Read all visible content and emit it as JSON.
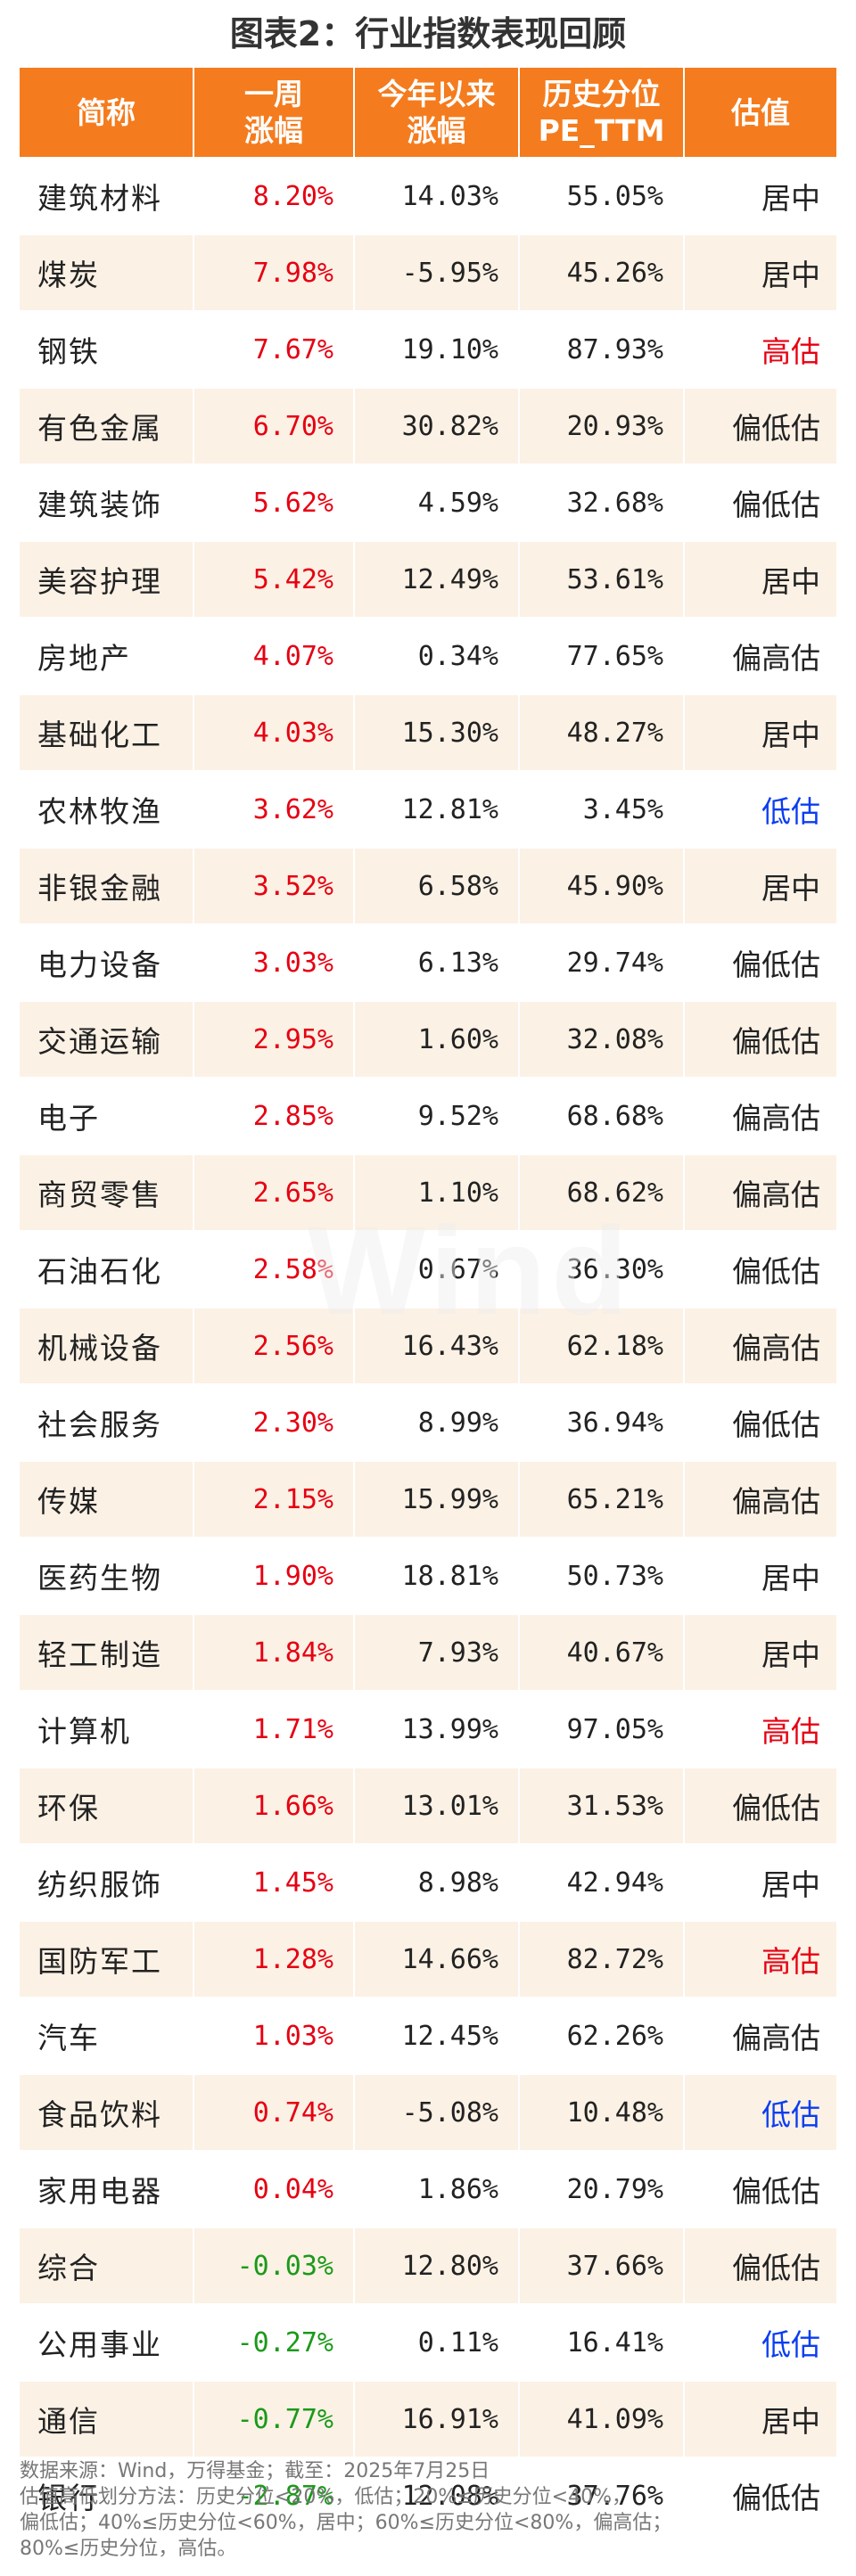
{
  "title": "图表2：行业指数表现回顾",
  "headers": [
    "简称",
    "一周\n涨幅",
    "今年以来\n涨幅",
    "历史分位\nPE_TTM",
    "估值"
  ],
  "colors": {
    "header_bg": "#f47c1e",
    "positive": "#e60012",
    "negative": "#1a9a1a",
    "high": "#e60012",
    "low": "#0b3df0",
    "stripe": "#fbf1e5"
  },
  "rows": [
    {
      "name": "建筑材料",
      "week": "8.20%",
      "ytd": "14.03%",
      "pe": "55.05%",
      "val": "居中"
    },
    {
      "name": "煤炭",
      "week": "7.98%",
      "ytd": "-5.95%",
      "pe": "45.26%",
      "val": "居中"
    },
    {
      "name": "钢铁",
      "week": "7.67%",
      "ytd": "19.10%",
      "pe": "87.93%",
      "val": "高估"
    },
    {
      "name": "有色金属",
      "week": "6.70%",
      "ytd": "30.82%",
      "pe": "20.93%",
      "val": "偏低估"
    },
    {
      "name": "建筑装饰",
      "week": "5.62%",
      "ytd": "4.59%",
      "pe": "32.68%",
      "val": "偏低估"
    },
    {
      "name": "美容护理",
      "week": "5.42%",
      "ytd": "12.49%",
      "pe": "53.61%",
      "val": "居中"
    },
    {
      "name": "房地产",
      "week": "4.07%",
      "ytd": "0.34%",
      "pe": "77.65%",
      "val": "偏高估"
    },
    {
      "name": "基础化工",
      "week": "4.03%",
      "ytd": "15.30%",
      "pe": "48.27%",
      "val": "居中"
    },
    {
      "name": "农林牧渔",
      "week": "3.62%",
      "ytd": "12.81%",
      "pe": "3.45%",
      "val": "低估"
    },
    {
      "name": "非银金融",
      "week": "3.52%",
      "ytd": "6.58%",
      "pe": "45.90%",
      "val": "居中"
    },
    {
      "name": "电力设备",
      "week": "3.03%",
      "ytd": "6.13%",
      "pe": "29.74%",
      "val": "偏低估"
    },
    {
      "name": "交通运输",
      "week": "2.95%",
      "ytd": "1.60%",
      "pe": "32.08%",
      "val": "偏低估"
    },
    {
      "name": "电子",
      "week": "2.85%",
      "ytd": "9.52%",
      "pe": "68.68%",
      "val": "偏高估"
    },
    {
      "name": "商贸零售",
      "week": "2.65%",
      "ytd": "1.10%",
      "pe": "68.62%",
      "val": "偏高估"
    },
    {
      "name": "石油石化",
      "week": "2.58%",
      "ytd": "0.67%",
      "pe": "36.30%",
      "val": "偏低估"
    },
    {
      "name": "机械设备",
      "week": "2.56%",
      "ytd": "16.43%",
      "pe": "62.18%",
      "val": "偏高估"
    },
    {
      "name": "社会服务",
      "week": "2.30%",
      "ytd": "8.99%",
      "pe": "36.94%",
      "val": "偏低估"
    },
    {
      "name": "传媒",
      "week": "2.15%",
      "ytd": "15.99%",
      "pe": "65.21%",
      "val": "偏高估"
    },
    {
      "name": "医药生物",
      "week": "1.90%",
      "ytd": "18.81%",
      "pe": "50.73%",
      "val": "居中"
    },
    {
      "name": "轻工制造",
      "week": "1.84%",
      "ytd": "7.93%",
      "pe": "40.67%",
      "val": "居中"
    },
    {
      "name": "计算机",
      "week": "1.71%",
      "ytd": "13.99%",
      "pe": "97.05%",
      "val": "高估"
    },
    {
      "name": "环保",
      "week": "1.66%",
      "ytd": "13.01%",
      "pe": "31.53%",
      "val": "偏低估"
    },
    {
      "name": "纺织服饰",
      "week": "1.45%",
      "ytd": "8.98%",
      "pe": "42.94%",
      "val": "居中"
    },
    {
      "name": "国防军工",
      "week": "1.28%",
      "ytd": "14.66%",
      "pe": "82.72%",
      "val": "高估"
    },
    {
      "name": "汽车",
      "week": "1.03%",
      "ytd": "12.45%",
      "pe": "62.26%",
      "val": "偏高估"
    },
    {
      "name": "食品饮料",
      "week": "0.74%",
      "ytd": "-5.08%",
      "pe": "10.48%",
      "val": "低估"
    },
    {
      "name": "家用电器",
      "week": "0.04%",
      "ytd": "1.86%",
      "pe": "20.79%",
      "val": "偏低估"
    },
    {
      "name": "综合",
      "week": "-0.03%",
      "ytd": "12.80%",
      "pe": "37.66%",
      "val": "偏低估"
    },
    {
      "name": "公用事业",
      "week": "-0.27%",
      "ytd": "0.11%",
      "pe": "16.41%",
      "val": "低估"
    },
    {
      "name": "通信",
      "week": "-0.77%",
      "ytd": "16.91%",
      "pe": "41.09%",
      "val": "居中"
    },
    {
      "name": "银行",
      "week": "-2.87%",
      "ytd": "12.08%",
      "pe": "37.76%",
      "val": "偏低估"
    }
  ],
  "watermark": "Wind",
  "notes": [
    "数据来源：Wind，万得基金；截至：2025年7月25日",
    "估值高低划分方法：历史分位<20%，低估；20%≤历史分位<40%，",
    "偏低估；40%≤历史分位<60%，居中；60%≤历史分位<80%，偏高估；",
    "80%≤历史分位，高估。"
  ]
}
